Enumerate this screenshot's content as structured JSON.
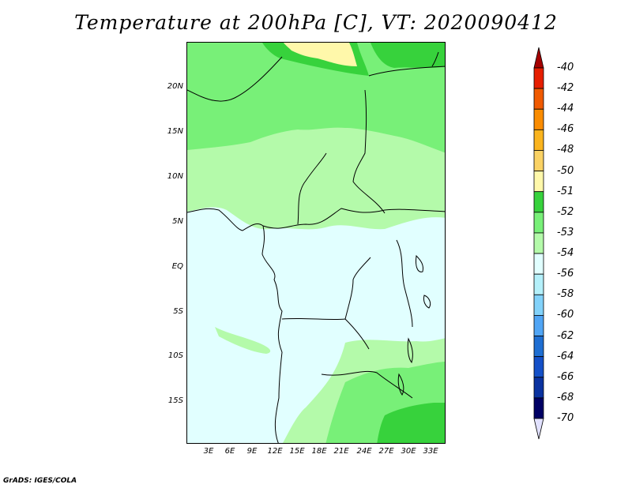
{
  "title": "Temperature at 200hPa [C], VT: 2020090412",
  "footer": "GrADS: IGES/COLA",
  "lat_labels": [
    "20N",
    "15N",
    "10N",
    "5N",
    "EQ",
    "5S",
    "10S",
    "15S"
  ],
  "lon_labels": [
    "3E",
    "6E",
    "9E",
    "12E",
    "15E",
    "18E",
    "21E",
    "24E",
    "27E",
    "30E",
    "33E"
  ],
  "colorbar": {
    "labels": [
      "-40",
      "-42",
      "-44",
      "-46",
      "-48",
      "-50",
      "-51",
      "-52",
      "-53",
      "-54",
      "-56",
      "-58",
      "-60",
      "-62",
      "-64",
      "-66",
      "-68",
      "-70"
    ],
    "colors": [
      "#a50000",
      "#e61e00",
      "#f05a00",
      "#fa8c00",
      "#fab41e",
      "#fad264",
      "#fff8aa",
      "#37d23c",
      "#78f078",
      "#b4faaa",
      "#e1ffff",
      "#b4f0fa",
      "#82d2fa",
      "#50a5f5",
      "#1e6ed2",
      "#1450c8",
      "#0a32a0",
      "#000064",
      "#e1e1ff"
    ]
  },
  "legend_colors": {
    "temp_-50_-51": "#fff8aa",
    "temp_-51_-52": "#37d23c",
    "temp_-52_-53": "#78f078",
    "temp_-53_-54": "#b4faaa",
    "temp_-54_-56": "#e1ffff"
  }
}
